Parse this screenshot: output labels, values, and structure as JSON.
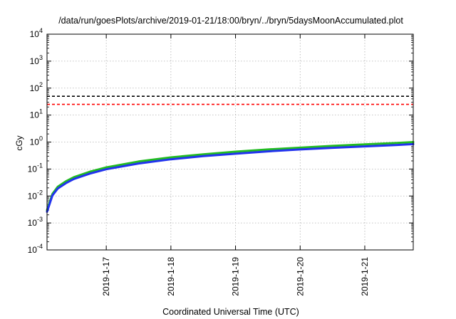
{
  "chart_data": {
    "type": "line",
    "title": "/data/run/goesPlots/archive/2019-01-21/18:00/bryn/../bryn/5daysMoonAccumulated.plot",
    "xlabel": "Coordinated Universal Time (UTC)",
    "ylabel": "cGy",
    "yscale": "log",
    "ylim": [
      0.0001,
      10000
    ],
    "xlim": [
      "2019-01-16 02:00",
      "2019-01-21 18:00"
    ],
    "grid": true,
    "y_ticks": [
      {
        "base": "10",
        "exp": "-4"
      },
      {
        "base": "10",
        "exp": "-3"
      },
      {
        "base": "10",
        "exp": "-2"
      },
      {
        "base": "10",
        "exp": "-1"
      },
      {
        "base": "10",
        "exp": "0"
      },
      {
        "base": "10",
        "exp": "1"
      },
      {
        "base": "10",
        "exp": "2"
      },
      {
        "base": "10",
        "exp": "3"
      },
      {
        "base": "10",
        "exp": "4"
      }
    ],
    "x_ticks": [
      "2019-1-17",
      "2019-1-18",
      "2019-1-19",
      "2019-1-20",
      "2019-1-21"
    ],
    "thresholds": [
      {
        "value": 50,
        "color": "#000000",
        "style": "dashed"
      },
      {
        "value": 25,
        "color": "#ff0000",
        "style": "dashed"
      }
    ],
    "series": [
      {
        "color": "#22bb22",
        "points": [
          [
            "2019-01-16 02:00",
            0.003
          ],
          [
            "2019-01-16 04:00",
            0.012
          ],
          [
            "2019-01-16 06:00",
            0.022
          ],
          [
            "2019-01-16 09:00",
            0.035
          ],
          [
            "2019-01-16 12:00",
            0.05
          ],
          [
            "2019-01-16 18:00",
            0.08
          ],
          [
            "2019-01-17 00:00",
            0.115
          ],
          [
            "2019-01-17 12:00",
            0.19
          ],
          [
            "2019-01-18 00:00",
            0.27
          ],
          [
            "2019-01-18 12:00",
            0.35
          ],
          [
            "2019-01-19 00:00",
            0.44
          ],
          [
            "2019-01-19 12:00",
            0.53
          ],
          [
            "2019-01-20 00:00",
            0.62
          ],
          [
            "2019-01-20 12:00",
            0.72
          ],
          [
            "2019-01-21 00:00",
            0.82
          ],
          [
            "2019-01-21 12:00",
            0.93
          ],
          [
            "2019-01-21 18:00",
            1.0
          ]
        ]
      },
      {
        "color": "#2233ee",
        "points": [
          [
            "2019-01-16 02:00",
            0.0026
          ],
          [
            "2019-01-16 04:00",
            0.0105
          ],
          [
            "2019-01-16 06:00",
            0.019
          ],
          [
            "2019-01-16 09:00",
            0.03
          ],
          [
            "2019-01-16 12:00",
            0.043
          ],
          [
            "2019-01-16 18:00",
            0.068
          ],
          [
            "2019-01-17 00:00",
            0.098
          ],
          [
            "2019-01-17 12:00",
            0.16
          ],
          [
            "2019-01-18 00:00",
            0.23
          ],
          [
            "2019-01-18 12:00",
            0.3
          ],
          [
            "2019-01-19 00:00",
            0.37
          ],
          [
            "2019-01-19 12:00",
            0.45
          ],
          [
            "2019-01-20 00:00",
            0.53
          ],
          [
            "2019-01-20 12:00",
            0.61
          ],
          [
            "2019-01-21 00:00",
            0.69
          ],
          [
            "2019-01-21 12:00",
            0.78
          ],
          [
            "2019-01-21 18:00",
            0.84
          ]
        ]
      }
    ]
  }
}
